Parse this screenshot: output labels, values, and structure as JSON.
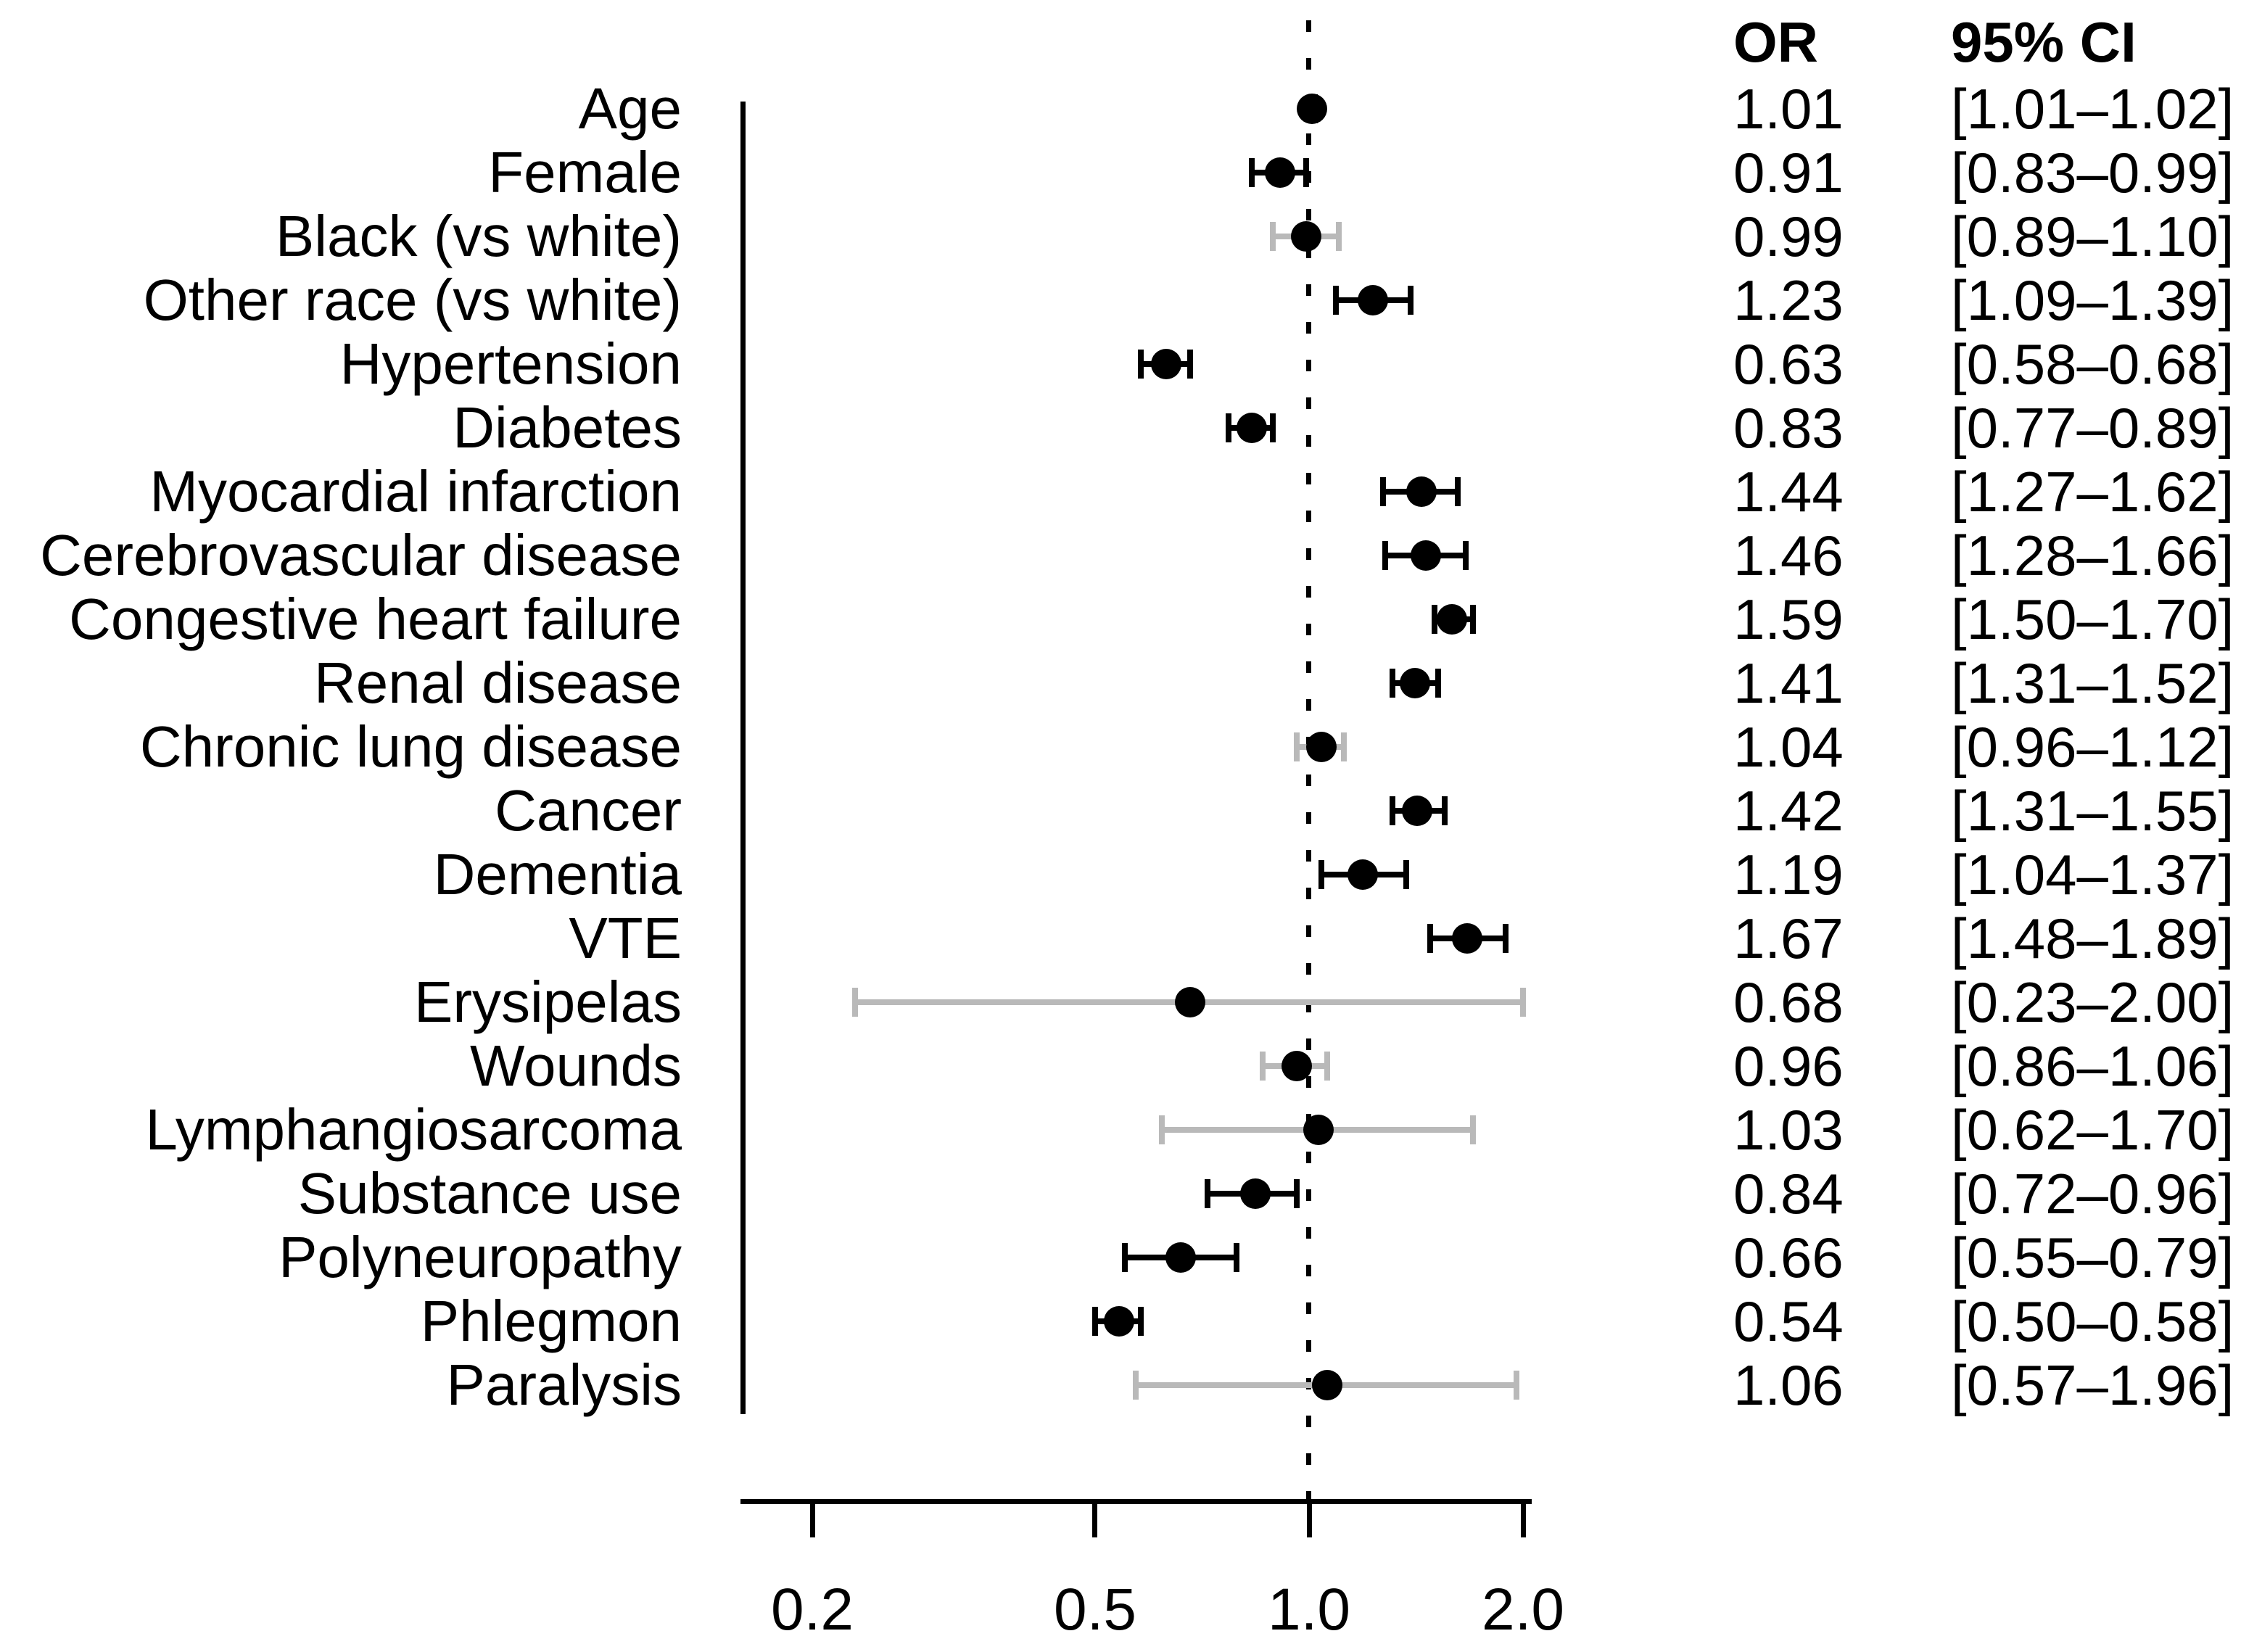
{
  "chart_data": {
    "type": "scatter",
    "subtype": "forest-plot",
    "title": "",
    "columns": {
      "or_header": "OR",
      "ci_header": "95% CI"
    },
    "x_axis": {
      "scale": "log",
      "tick_labels": [
        "0.2",
        "0.5",
        "1.0",
        "2.0"
      ],
      "tick_values": [
        0.2,
        0.5,
        1.0,
        2.0
      ],
      "reference_value": 1.0,
      "range": [
        0.19,
        2.1
      ],
      "grid": false
    },
    "colors": {
      "point": "#000000",
      "ci_significant": "#000000",
      "ci_nonsignificant": "#b9b9b9"
    },
    "rows": [
      {
        "label": "Age",
        "or": 1.01,
        "lo": 1.01,
        "hi": 1.02,
        "or_text": "1.01",
        "ci_text": "[1.01–1.02]",
        "significant": true
      },
      {
        "label": "Female",
        "or": 0.91,
        "lo": 0.83,
        "hi": 0.99,
        "or_text": "0.91",
        "ci_text": "[0.83–0.99]",
        "significant": true
      },
      {
        "label": "Black (vs white)",
        "or": 0.99,
        "lo": 0.89,
        "hi": 1.1,
        "or_text": "0.99",
        "ci_text": "[0.89–1.10]",
        "significant": false
      },
      {
        "label": "Other race (vs white)",
        "or": 1.23,
        "lo": 1.09,
        "hi": 1.39,
        "or_text": "1.23",
        "ci_text": "[1.09–1.39]",
        "significant": true
      },
      {
        "label": "Hypertension",
        "or": 0.63,
        "lo": 0.58,
        "hi": 0.68,
        "or_text": "0.63",
        "ci_text": "[0.58–0.68]",
        "significant": true
      },
      {
        "label": "Diabetes",
        "or": 0.83,
        "lo": 0.77,
        "hi": 0.89,
        "or_text": "0.83",
        "ci_text": "[0.77–0.89]",
        "significant": true
      },
      {
        "label": "Myocardial infarction",
        "or": 1.44,
        "lo": 1.27,
        "hi": 1.62,
        "or_text": "1.44",
        "ci_text": "[1.27–1.62]",
        "significant": true
      },
      {
        "label": "Cerebrovascular disease",
        "or": 1.46,
        "lo": 1.28,
        "hi": 1.66,
        "or_text": "1.46",
        "ci_text": "[1.28–1.66]",
        "significant": true
      },
      {
        "label": "Congestive heart failure",
        "or": 1.59,
        "lo": 1.5,
        "hi": 1.7,
        "or_text": "1.59",
        "ci_text": "[1.50–1.70]",
        "significant": true
      },
      {
        "label": "Renal disease",
        "or": 1.41,
        "lo": 1.31,
        "hi": 1.52,
        "or_text": "1.41",
        "ci_text": "[1.31–1.52]",
        "significant": true
      },
      {
        "label": "Chronic lung disease",
        "or": 1.04,
        "lo": 0.96,
        "hi": 1.12,
        "or_text": "1.04",
        "ci_text": "[0.96–1.12]",
        "significant": false
      },
      {
        "label": "Cancer",
        "or": 1.42,
        "lo": 1.31,
        "hi": 1.55,
        "or_text": "1.42",
        "ci_text": "[1.31–1.55]",
        "significant": true
      },
      {
        "label": "Dementia",
        "or": 1.19,
        "lo": 1.04,
        "hi": 1.37,
        "or_text": "1.19",
        "ci_text": "[1.04–1.37]",
        "significant": true
      },
      {
        "label": "VTE",
        "or": 1.67,
        "lo": 1.48,
        "hi": 1.89,
        "or_text": "1.67",
        "ci_text": "[1.48–1.89]",
        "significant": true
      },
      {
        "label": "Erysipelas",
        "or": 0.68,
        "lo": 0.23,
        "hi": 2.0,
        "or_text": "0.68",
        "ci_text": "[0.23–2.00]",
        "significant": false
      },
      {
        "label": "Wounds",
        "or": 0.96,
        "lo": 0.86,
        "hi": 1.06,
        "or_text": "0.96",
        "ci_text": "[0.86–1.06]",
        "significant": false
      },
      {
        "label": "Lymphangiosarcoma",
        "or": 1.03,
        "lo": 0.62,
        "hi": 1.7,
        "or_text": "1.03",
        "ci_text": "[0.62–1.70]",
        "significant": false
      },
      {
        "label": "Substance use",
        "or": 0.84,
        "lo": 0.72,
        "hi": 0.96,
        "or_text": "0.84",
        "ci_text": "[0.72–0.96]",
        "significant": true
      },
      {
        "label": "Polyneuropathy",
        "or": 0.66,
        "lo": 0.55,
        "hi": 0.79,
        "or_text": "0.66",
        "ci_text": "[0.55–0.79]",
        "significant": true
      },
      {
        "label": "Phlegmon",
        "or": 0.54,
        "lo": 0.5,
        "hi": 0.58,
        "or_text": "0.54",
        "ci_text": "[0.50–0.58]",
        "significant": true
      },
      {
        "label": "Paralysis",
        "or": 1.06,
        "lo": 0.57,
        "hi": 1.96,
        "or_text": "1.06",
        "ci_text": "[0.57–1.96]",
        "significant": false
      }
    ]
  }
}
